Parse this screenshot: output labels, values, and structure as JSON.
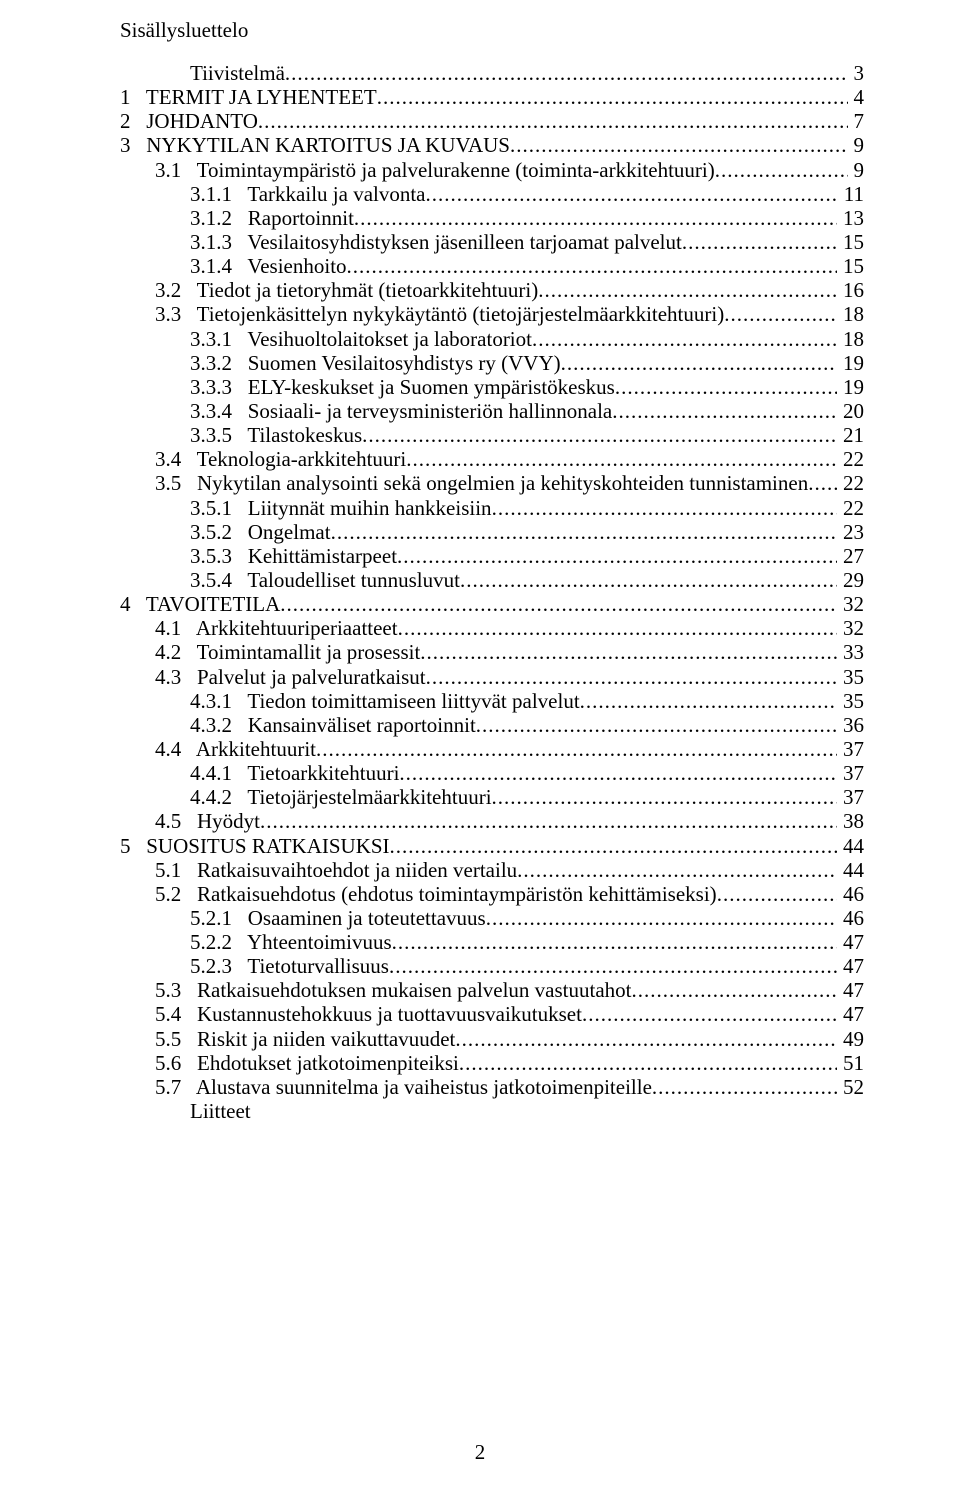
{
  "heading": "Sisällysluettelo",
  "pageNumber": "2",
  "toc": [
    {
      "indent": 0,
      "label": "Tiivistelmä",
      "page": " 3",
      "dotted": true
    },
    {
      "indent": 1,
      "label": "1   TERMIT JA LYHENTEET",
      "page": "4",
      "dotted": true
    },
    {
      "indent": 1,
      "label": "2   JOHDANTO",
      "page": "7",
      "dotted": true
    },
    {
      "indent": 1,
      "label": "3   NYKYTILAN KARTOITUS JA KUVAUS",
      "page": "9",
      "dotted": true
    },
    {
      "indent": 2,
      "label": "3.1   Toimintaympäristö ja palvelurakenne (toiminta-arkkitehtuuri)",
      "page": "9",
      "dotted": true
    },
    {
      "indent": 3,
      "label": "3.1.1   Tarkkailu ja valvonta",
      "page": "11",
      "dotted": true
    },
    {
      "indent": 3,
      "label": "3.1.2   Raportoinnit",
      "page": "13",
      "dotted": true
    },
    {
      "indent": 3,
      "label": "3.1.3   Vesilaitosyhdistyksen jäsenilleen tarjoamat palvelut",
      "page": "15",
      "dotted": true
    },
    {
      "indent": 3,
      "label": "3.1.4   Vesienhoito",
      "page": "15",
      "dotted": true
    },
    {
      "indent": 2,
      "label": "3.2   Tiedot ja tietoryhmät (tietoarkkitehtuuri)",
      "page": "16",
      "dotted": true
    },
    {
      "indent": 2,
      "label": "3.3   Tietojenkäsittelyn nykykäytäntö (tietojärjestelmäarkkitehtuuri)",
      "page": "18",
      "dotted": true
    },
    {
      "indent": 3,
      "label": "3.3.1   Vesihuoltolaitokset ja laboratoriot",
      "page": "18",
      "dotted": true
    },
    {
      "indent": 3,
      "label": "3.3.2   Suomen Vesilaitosyhdistys ry (VVY)",
      "page": "19",
      "dotted": true
    },
    {
      "indent": 3,
      "label": "3.3.3   ELY-keskukset ja Suomen ympäristökeskus",
      "page": "19",
      "dotted": true
    },
    {
      "indent": 3,
      "label": "3.3.4   Sosiaali- ja terveysministeriön hallinnonala",
      "page": "20",
      "dotted": true
    },
    {
      "indent": 3,
      "label": "3.3.5   Tilastokeskus",
      "page": "21",
      "dotted": true
    },
    {
      "indent": 2,
      "label": "3.4   Teknologia-arkkitehtuuri",
      "page": "22",
      "dotted": true
    },
    {
      "indent": 2,
      "label": "3.5   Nykytilan analysointi sekä ongelmien ja kehityskohteiden tunnistaminen",
      "page": "22",
      "dotted": true
    },
    {
      "indent": 3,
      "label": "3.5.1   Liitynnät muihin hankkeisiin",
      "page": "22",
      "dotted": true
    },
    {
      "indent": 3,
      "label": "3.5.2   Ongelmat",
      "page": "23",
      "dotted": true
    },
    {
      "indent": 3,
      "label": "3.5.3   Kehittämistarpeet",
      "page": "27",
      "dotted": true
    },
    {
      "indent": 3,
      "label": "3.5.4   Taloudelliset tunnusluvut",
      "page": "29",
      "dotted": true
    },
    {
      "indent": 1,
      "label": "4   TAVOITETILA",
      "page": "32",
      "dotted": true
    },
    {
      "indent": 2,
      "label": "4.1   Arkkitehtuuriperiaatteet",
      "page": "32",
      "dotted": true
    },
    {
      "indent": 2,
      "label": "4.2   Toimintamallit ja prosessit",
      "page": "33",
      "dotted": true
    },
    {
      "indent": 2,
      "label": "4.3   Palvelut ja palveluratkaisut",
      "page": "35",
      "dotted": true
    },
    {
      "indent": 3,
      "label": "4.3.1   Tiedon toimittamiseen liittyvät palvelut",
      "page": "35",
      "dotted": true
    },
    {
      "indent": 3,
      "label": "4.3.2   Kansainväliset raportoinnit",
      "page": "36",
      "dotted": true
    },
    {
      "indent": 2,
      "label": "4.4   Arkkitehtuurit",
      "page": "37",
      "dotted": true
    },
    {
      "indent": 3,
      "label": "4.4.1   Tietoarkkitehtuuri",
      "page": "37",
      "dotted": true
    },
    {
      "indent": 3,
      "label": "4.4.2   Tietojärjestelmäarkkitehtuuri",
      "page": "37",
      "dotted": true
    },
    {
      "indent": 2,
      "label": "4.5   Hyödyt",
      "page": "38",
      "dotted": true
    },
    {
      "indent": 1,
      "label": "5   SUOSITUS RATKAISUKSI",
      "page": "44",
      "dotted": true
    },
    {
      "indent": 2,
      "label": "5.1   Ratkaisuvaihtoehdot ja niiden vertailu",
      "page": "44",
      "dotted": true
    },
    {
      "indent": 2,
      "label": "5.2   Ratkaisuehdotus (ehdotus toimintaympäristön kehittämiseksi)",
      "page": "46",
      "dotted": true
    },
    {
      "indent": 3,
      "label": "5.2.1   Osaaminen ja toteutettavuus",
      "page": "46",
      "dotted": true
    },
    {
      "indent": 3,
      "label": "5.2.2   Yhteentoimivuus",
      "page": "47",
      "dotted": true
    },
    {
      "indent": 3,
      "label": "5.2.3   Tietoturvallisuus",
      "page": "47",
      "dotted": true
    },
    {
      "indent": 2,
      "label": "5.3   Ratkaisuehdotuksen mukaisen palvelun vastuutahot",
      "page": "47",
      "dotted": true
    },
    {
      "indent": 2,
      "label": "5.4   Kustannustehokkuus ja tuottavuusvaikutukset",
      "page": "47",
      "dotted": true
    },
    {
      "indent": 2,
      "label": "5.5   Riskit ja niiden vaikuttavuudet",
      "page": "49",
      "dotted": true
    },
    {
      "indent": 2,
      "label": "5.6   Ehdotukset jatkotoimenpiteiksi",
      "page": "51",
      "dotted": true
    },
    {
      "indent": 2,
      "label": "5.7   Alustava suunnitelma ja vaiheistus jatkotoimenpiteille",
      "page": "52",
      "dotted": true
    },
    {
      "indent": 0,
      "label": "Liitteet",
      "page": "",
      "dotted": false
    }
  ]
}
